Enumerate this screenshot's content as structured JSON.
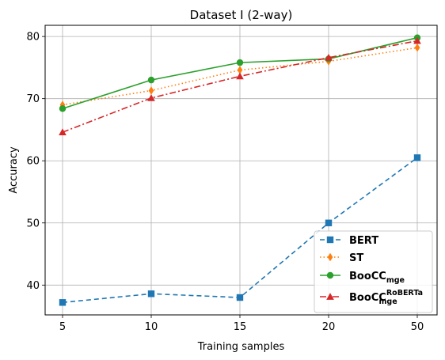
{
  "chart_data": {
    "type": "line",
    "title": "Dataset I (2-way)",
    "xlabel": "Training samples",
    "ylabel": "Accuracy",
    "categories": [
      "5",
      "10",
      "15",
      "20",
      "50"
    ],
    "ylim": [
      35.2,
      81.8
    ],
    "yticks": [
      40,
      50,
      60,
      70,
      80
    ],
    "grid": true,
    "legend_position": "lower-right",
    "series": [
      {
        "name": "BERT",
        "legend_base": "BERT",
        "legend_sub": "",
        "legend_sup": "",
        "values": [
          37.2,
          38.6,
          38.0,
          50.0,
          60.5
        ],
        "color": "#1f77b4",
        "dash": "6,4",
        "marker": "square"
      },
      {
        "name": "ST",
        "legend_base": "ST",
        "legend_sub": "",
        "legend_sup": "",
        "values": [
          69.0,
          71.3,
          74.6,
          76.0,
          78.2
        ],
        "color": "#ff7f0e",
        "dash": "1.5,3",
        "marker": "diamond"
      },
      {
        "name": "BooCC_mge",
        "legend_base": "BooCC",
        "legend_sub": "mge",
        "legend_sup": "",
        "values": [
          68.4,
          73.0,
          75.8,
          76.4,
          79.8
        ],
        "color": "#2ca02c",
        "dash": "",
        "marker": "circle"
      },
      {
        "name": "BooCC_mge^RoBERTa",
        "legend_base": "BooCC",
        "legend_sub": "mge",
        "legend_sup": "RoBERTa",
        "values": [
          64.6,
          70.1,
          73.6,
          76.6,
          79.3
        ],
        "color": "#d62728",
        "dash": "8,3,2,3",
        "marker": "triangle"
      }
    ]
  }
}
